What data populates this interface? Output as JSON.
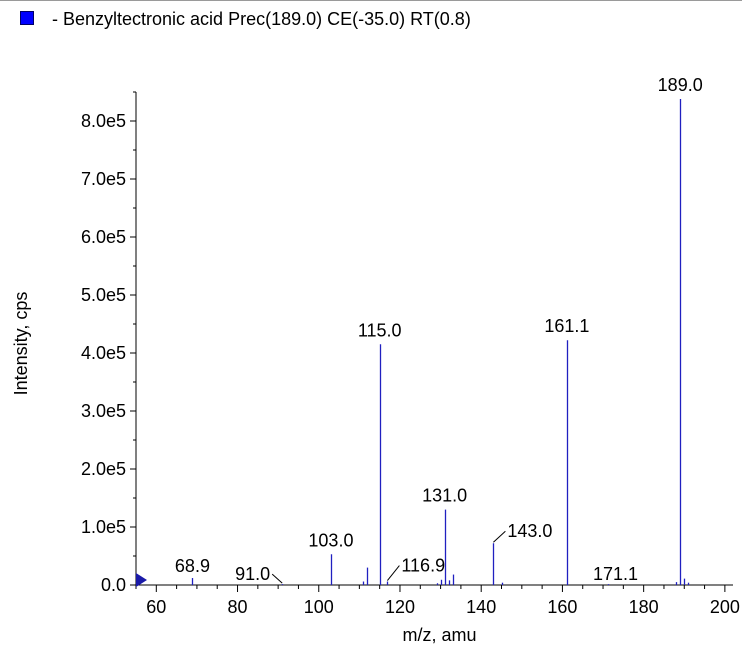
{
  "legend": {
    "label": "- Benzyltectronic acid Prec(189.0) CE(-35.0) RT(0.8)",
    "swatch_color": "#0000ff"
  },
  "chart_data": {
    "type": "bar",
    "subtype": "mass-spectrum-stick",
    "xlabel": "m/z, amu",
    "ylabel": "Intensity, cps",
    "xlim": [
      55,
      202
    ],
    "ylim": [
      0,
      850000
    ],
    "x_ticks": [
      60,
      80,
      100,
      120,
      140,
      160,
      180,
      200
    ],
    "x_tick_labels": [
      "60",
      "80",
      "100",
      "120",
      "140",
      "160",
      "180",
      "200"
    ],
    "y_ticks": [
      0,
      100000,
      200000,
      300000,
      400000,
      500000,
      600000,
      700000,
      800000
    ],
    "y_tick_labels": [
      "0.0",
      "1.0e5",
      "2.0e5",
      "3.0e5",
      "4.0e5",
      "5.0e5",
      "6.0e5",
      "7.0e5",
      "8.0e5"
    ],
    "line_color": "#2020c0",
    "series": [
      {
        "peaks": [
          {
            "mz": 68.9,
            "intensity": 12000
          },
          {
            "mz": 91.0,
            "intensity": 1500
          },
          {
            "mz": 103.0,
            "intensity": 53000
          },
          {
            "mz": 111.0,
            "intensity": 6000
          },
          {
            "mz": 112.0,
            "intensity": 30000
          },
          {
            "mz": 115.0,
            "intensity": 415000
          },
          {
            "mz": 116.9,
            "intensity": 6000
          },
          {
            "mz": 129.0,
            "intensity": 3000
          },
          {
            "mz": 130.0,
            "intensity": 9000
          },
          {
            "mz": 131.0,
            "intensity": 130000
          },
          {
            "mz": 132.0,
            "intensity": 8000
          },
          {
            "mz": 133.0,
            "intensity": 18000
          },
          {
            "mz": 143.0,
            "intensity": 72000
          },
          {
            "mz": 145.0,
            "intensity": 4000
          },
          {
            "mz": 161.1,
            "intensity": 422000
          },
          {
            "mz": 171.1,
            "intensity": 1500
          },
          {
            "mz": 188.0,
            "intensity": 5000
          },
          {
            "mz": 189.0,
            "intensity": 838000
          },
          {
            "mz": 190.0,
            "intensity": 11000
          },
          {
            "mz": 191.0,
            "intensity": 4000
          }
        ]
      }
    ],
    "peak_labels": [
      {
        "text": "68.9",
        "mz": 68.9,
        "intensity": 12000
      },
      {
        "text": "91.0",
        "mz": 91.0,
        "intensity": 1500
      },
      {
        "text": "103.0",
        "mz": 103.0,
        "intensity": 53000
      },
      {
        "text": "115.0",
        "mz": 115.0,
        "intensity": 415000
      },
      {
        "text": "116.9",
        "mz": 116.9,
        "intensity": 6000
      },
      {
        "text": "131.0",
        "mz": 131.0,
        "intensity": 130000
      },
      {
        "text": "143.0",
        "mz": 143.0,
        "intensity": 72000
      },
      {
        "text": "161.1",
        "mz": 161.1,
        "intensity": 422000
      },
      {
        "text": "171.1",
        "mz": 171.1,
        "intensity": 1500
      },
      {
        "text": "189.0",
        "mz": 189.0,
        "intensity": 838000
      }
    ]
  }
}
